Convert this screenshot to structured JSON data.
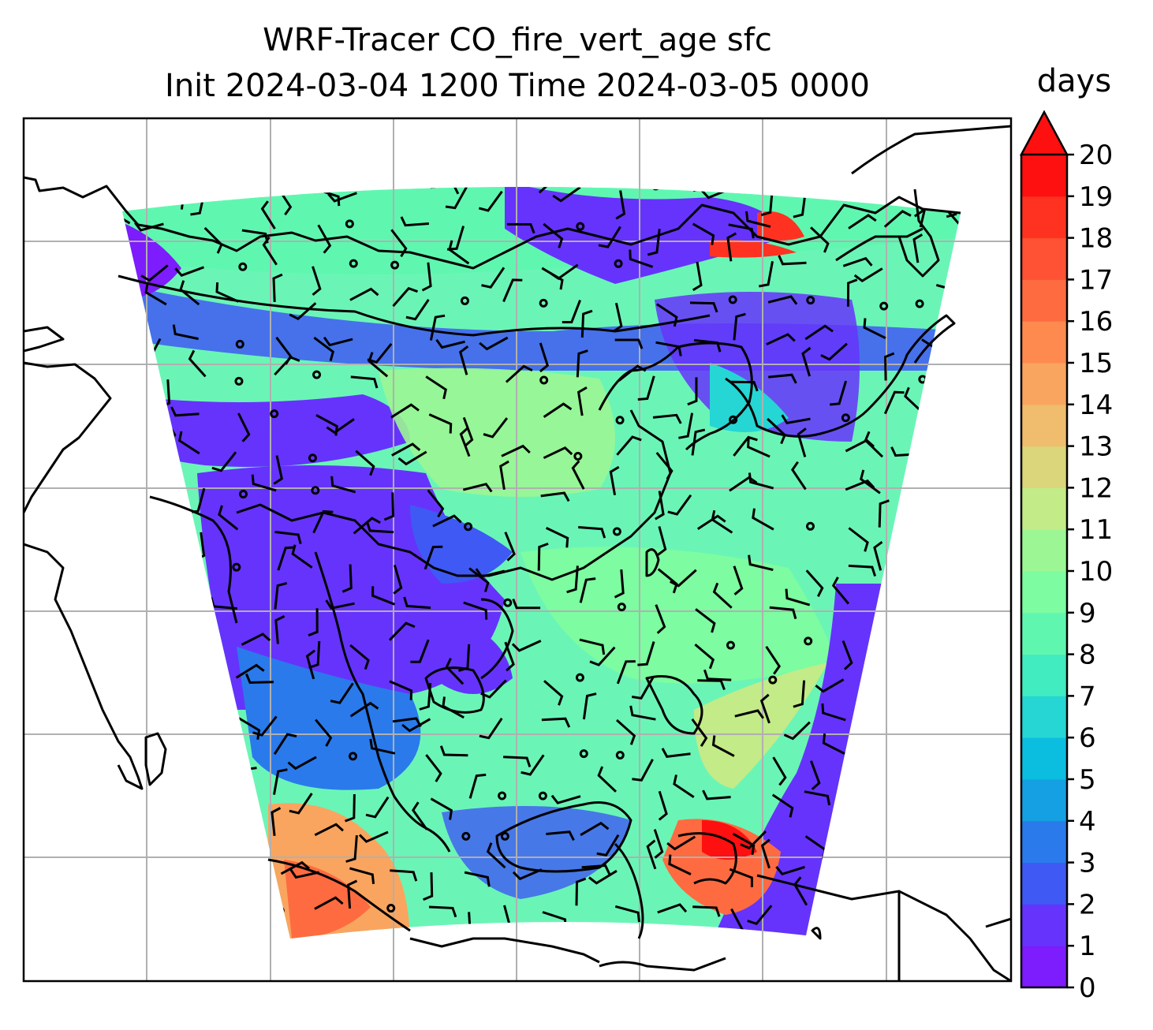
{
  "title": {
    "line1": "WRF-Tracer CO_fire_vert_age sfc",
    "line2": "Init 2024-03-04 1200 Time 2024-03-05 0000"
  },
  "colorbar": {
    "unit": "days",
    "min": 0,
    "max": 20,
    "extend": "max",
    "ticks": [
      "0",
      "1",
      "2",
      "3",
      "4",
      "5",
      "6",
      "7",
      "8",
      "9",
      "10",
      "11",
      "12",
      "13",
      "14",
      "15",
      "16",
      "17",
      "18",
      "19",
      "20"
    ],
    "colors": [
      "#7d1cfc",
      "#6633fc",
      "#3f59f4",
      "#2a7aeb",
      "#15a0e4",
      "#0bbddf",
      "#25d6d4",
      "#40ecc0",
      "#5ff7b0",
      "#7dfca1",
      "#9cf694",
      "#c3eb87",
      "#dbd57b",
      "#f0bc6e",
      "#f9a55f",
      "#ff8a4f",
      "#ff6b40",
      "#ff5133",
      "#ff3222",
      "#ff1010"
    ]
  },
  "map": {
    "field": "CO_fire_vert_age",
    "level": "sfc",
    "gridlines": true,
    "coastlines": true,
    "wind_barbs": true
  }
}
